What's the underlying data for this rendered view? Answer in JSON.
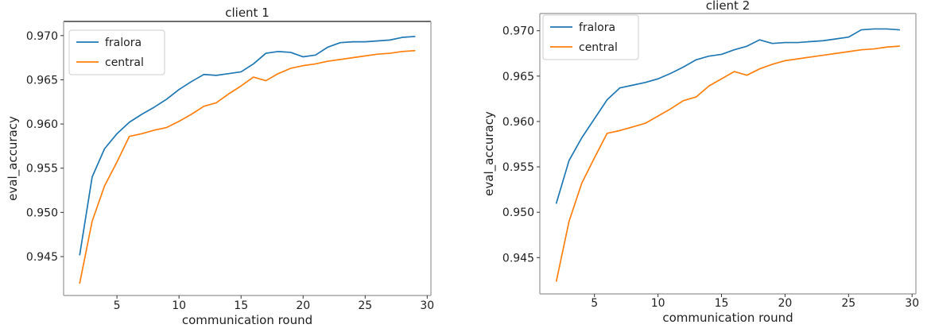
{
  "page": {
    "background": "#ffffff"
  },
  "colors": {
    "fralora_line": "#1f77b4",
    "central_line": "#ff7f0e",
    "axis_text": "#1f1f1f",
    "spine_light": "#a6a6a6",
    "spine_dark": "#3d3d3d",
    "tick_mark": "#333333",
    "legend_border": "#cccccc",
    "legend_background": "#ffffff"
  },
  "chart_data": [
    {
      "type": "line",
      "title": "client 1",
      "xlabel": "communication round",
      "ylabel": "eval_accuracy",
      "x": [
        2,
        3,
        4,
        5,
        6,
        7,
        8,
        9,
        10,
        11,
        12,
        13,
        14,
        15,
        16,
        17,
        18,
        19,
        20,
        21,
        22,
        23,
        24,
        25,
        26,
        27,
        28,
        29
      ],
      "series": [
        {
          "name": "fralora",
          "color": "#1f77b4",
          "values": [
            0.9452,
            0.954,
            0.9572,
            0.9589,
            0.9602,
            0.9611,
            0.9619,
            0.9628,
            0.9639,
            0.9648,
            0.9656,
            0.9655,
            0.9657,
            0.9659,
            0.9668,
            0.968,
            0.9682,
            0.9681,
            0.9676,
            0.9678,
            0.9687,
            0.9692,
            0.9693,
            0.9693,
            0.9694,
            0.9695,
            0.9698,
            0.9699
          ]
        },
        {
          "name": "central",
          "color": "#ff7f0e",
          "values": [
            0.942,
            0.949,
            0.953,
            0.9557,
            0.9586,
            0.9589,
            0.9593,
            0.9596,
            0.9603,
            0.9611,
            0.962,
            0.9624,
            0.9634,
            0.9643,
            0.9653,
            0.9649,
            0.9657,
            0.9663,
            0.9666,
            0.9668,
            0.9671,
            0.9673,
            0.9675,
            0.9677,
            0.9679,
            0.968,
            0.9682,
            0.9683
          ]
        }
      ],
      "xticks": [
        5,
        10,
        15,
        20,
        25,
        30
      ],
      "yticks": [
        0.945,
        0.95,
        0.955,
        0.96,
        0.965,
        0.97
      ],
      "xlim": [
        0.7,
        30.3
      ],
      "ylim": [
        0.9406,
        0.9716
      ],
      "grid": false,
      "legend": {
        "position": "upper left",
        "entries": [
          "fralora",
          "central"
        ]
      }
    },
    {
      "type": "line",
      "title": "client 2",
      "xlabel": "communication round",
      "ylabel": "eval_accuracy",
      "x": [
        2,
        3,
        4,
        5,
        6,
        7,
        8,
        9,
        10,
        11,
        12,
        13,
        14,
        15,
        16,
        17,
        18,
        19,
        20,
        21,
        22,
        23,
        24,
        25,
        26,
        27,
        28,
        29
      ],
      "series": [
        {
          "name": "fralora",
          "color": "#1f77b4",
          "values": [
            0.951,
            0.9557,
            0.9582,
            0.9603,
            0.9624,
            0.9637,
            0.964,
            0.9643,
            0.9647,
            0.9653,
            0.966,
            0.9668,
            0.9672,
            0.9674,
            0.9679,
            0.9683,
            0.969,
            0.9686,
            0.9687,
            0.9687,
            0.9688,
            0.9689,
            0.9691,
            0.9693,
            0.9701,
            0.9702,
            0.9702,
            0.9701
          ]
        },
        {
          "name": "central",
          "color": "#ff7f0e",
          "values": [
            0.9424,
            0.949,
            0.9532,
            0.956,
            0.9587,
            0.959,
            0.9594,
            0.9598,
            0.9606,
            0.9614,
            0.9623,
            0.9627,
            0.9639,
            0.9647,
            0.9655,
            0.9651,
            0.9658,
            0.9663,
            0.9667,
            0.9669,
            0.9671,
            0.9673,
            0.9675,
            0.9677,
            0.9679,
            0.968,
            0.9682,
            0.9683
          ]
        }
      ],
      "xticks": [
        5,
        10,
        15,
        20,
        25,
        30
      ],
      "yticks": [
        0.945,
        0.95,
        0.955,
        0.96,
        0.965,
        0.97
      ],
      "xlim": [
        0.7,
        30.3
      ],
      "ylim": [
        0.941,
        0.9719
      ],
      "grid": false,
      "legend": {
        "position": "upper left",
        "entries": [
          "fralora",
          "central"
        ]
      }
    }
  ]
}
